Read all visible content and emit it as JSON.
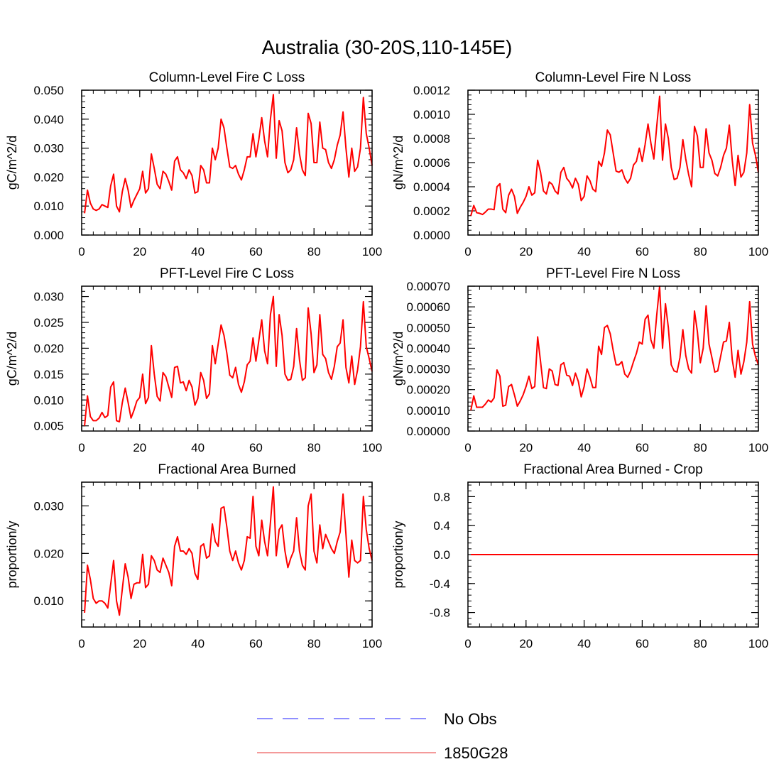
{
  "title": "Australia (30-20S,110-145E)",
  "colors": {
    "obs": "#6a6aff",
    "model": "#ff0000",
    "legend_model": "#f07878"
  },
  "legend": [
    {
      "label": "No Obs",
      "style": "dashed",
      "color": "#6a6aff"
    },
    {
      "label": "1850G28",
      "style": "solid",
      "color": "#f07878"
    }
  ],
  "chart_data": [
    {
      "type": "line",
      "title": "Column-Level Fire C Loss",
      "xlabel": "",
      "ylabel": "gC/m^2/d",
      "xlim": [
        0,
        100
      ],
      "ylim": [
        0,
        0.05
      ],
      "xticks": [
        0,
        20,
        40,
        60,
        80,
        100
      ],
      "xtick_labels": [
        "0",
        "20",
        "40",
        "60",
        "80",
        "100"
      ],
      "yticks": [
        0,
        0.01,
        0.02,
        0.03,
        0.04,
        0.05
      ],
      "ytick_labels": [
        "0.000",
        "0.010",
        "0.020",
        "0.030",
        "0.040",
        "0.050"
      ],
      "series": [
        {
          "name": "1850G28",
          "values": [
            0.0075,
            0.0155,
            0.011,
            0.009,
            0.0085,
            0.009,
            0.0105,
            0.01,
            0.0095,
            0.017,
            0.021,
            0.01,
            0.008,
            0.015,
            0.0195,
            0.0155,
            0.0095,
            0.012,
            0.014,
            0.016,
            0.022,
            0.0145,
            0.016,
            0.028,
            0.023,
            0.0175,
            0.016,
            0.022,
            0.021,
            0.0185,
            0.0155,
            0.0255,
            0.027,
            0.0225,
            0.0215,
            0.0195,
            0.0225,
            0.0205,
            0.0145,
            0.015,
            0.024,
            0.0225,
            0.018,
            0.018,
            0.03,
            0.026,
            0.03,
            0.04,
            0.037,
            0.03,
            0.0235,
            0.023,
            0.024,
            0.021,
            0.019,
            0.0225,
            0.027,
            0.027,
            0.035,
            0.027,
            0.033,
            0.0405,
            0.0325,
            0.027,
            0.04,
            0.0485,
            0.0265,
            0.0395,
            0.036,
            0.025,
            0.0215,
            0.0225,
            0.026,
            0.037,
            0.028,
            0.0225,
            0.0205,
            0.042,
            0.0385,
            0.025,
            0.025,
            0.039,
            0.03,
            0.0295,
            0.025,
            0.023,
            0.026,
            0.031,
            0.0345,
            0.0425,
            0.03,
            0.02,
            0.03,
            0.022,
            0.0235,
            0.03,
            0.0475,
            0.035,
            0.03,
            0.024
          ]
        }
      ]
    },
    {
      "type": "line",
      "title": "Column-Level Fire N Loss",
      "xlabel": "",
      "ylabel": "gN/m^2/d",
      "xlim": [
        0,
        100
      ],
      "ylim": [
        0,
        0.0012
      ],
      "xticks": [
        0,
        20,
        40,
        60,
        80,
        100
      ],
      "xtick_labels": [
        "0",
        "20",
        "40",
        "60",
        "80",
        "100"
      ],
      "yticks": [
        0,
        0.0002,
        0.0004,
        0.0006,
        0.0008,
        0.001,
        0.0012
      ],
      "ytick_labels": [
        "0.0000",
        "0.0002",
        "0.0004",
        "0.0006",
        "0.0008",
        "0.0010",
        "0.0012"
      ],
      "series": [
        {
          "name": "1850G28",
          "values": [
            0.00016,
            0.000245,
            0.000185,
            0.00018,
            0.00017,
            0.00019,
            0.000215,
            0.000215,
            0.00021,
            0.0004,
            0.000425,
            0.000215,
            0.000185,
            0.00033,
            0.00038,
            0.00032,
            0.00018,
            0.00023,
            0.00027,
            0.00032,
            0.0004,
            0.00033,
            0.00035,
            0.00062,
            0.00052,
            0.000365,
            0.00034,
            0.00044,
            0.00042,
            0.000365,
            0.00034,
            0.00052,
            0.00056,
            0.00047,
            0.00044,
            0.00039,
            0.00047,
            0.00042,
            0.000285,
            0.00032,
            0.00049,
            0.00045,
            0.00038,
            0.00036,
            0.00061,
            0.00057,
            0.00068,
            0.00087,
            0.00083,
            0.00068,
            0.00053,
            0.00052,
            0.00054,
            0.00047,
            0.00043,
            0.00047,
            0.00058,
            0.00061,
            0.00072,
            0.00061,
            0.00075,
            0.00092,
            0.00076,
            0.00063,
            0.0009,
            0.00115,
            0.00062,
            0.00092,
            0.0008,
            0.00056,
            0.00046,
            0.00047,
            0.00056,
            0.00079,
            0.00063,
            0.0005,
            0.0004,
            0.0009,
            0.00082,
            0.00056,
            0.00056,
            0.00088,
            0.00068,
            0.00062,
            0.00051,
            0.00049,
            0.00056,
            0.00066,
            0.00072,
            0.00091,
            0.00062,
            0.00041,
            0.00066,
            0.00048,
            0.00052,
            0.00068,
            0.00108,
            0.00076,
            0.00066,
            0.00052
          ]
        }
      ]
    },
    {
      "type": "line",
      "title": "PFT-Level Fire C Loss",
      "xlabel": "",
      "ylabel": "gC/m^2/d",
      "xlim": [
        0,
        100
      ],
      "ylim": [
        0.004,
        0.032
      ],
      "xticks": [
        0,
        20,
        40,
        60,
        80,
        100
      ],
      "xtick_labels": [
        "0",
        "20",
        "40",
        "60",
        "80",
        "100"
      ],
      "yticks": [
        0.005,
        0.01,
        0.015,
        0.02,
        0.025,
        0.03
      ],
      "ytick_labels": [
        "0.005",
        "0.010",
        "0.015",
        "0.020",
        "0.025",
        "0.030"
      ],
      "series": [
        {
          "name": "1850G28",
          "values": [
            0.005,
            0.0108,
            0.0068,
            0.006,
            0.006,
            0.0065,
            0.0076,
            0.0066,
            0.007,
            0.0125,
            0.0135,
            0.006,
            0.0058,
            0.0095,
            0.0123,
            0.0095,
            0.0065,
            0.008,
            0.0098,
            0.0105,
            0.015,
            0.0093,
            0.0105,
            0.0205,
            0.015,
            0.0107,
            0.0098,
            0.0153,
            0.0145,
            0.0125,
            0.0105,
            0.0163,
            0.0165,
            0.0133,
            0.0135,
            0.0118,
            0.0138,
            0.0125,
            0.009,
            0.0103,
            0.0153,
            0.0138,
            0.0103,
            0.0112,
            0.0205,
            0.017,
            0.0208,
            0.0245,
            0.0225,
            0.019,
            0.0148,
            0.0143,
            0.0163,
            0.013,
            0.0115,
            0.0135,
            0.0168,
            0.0175,
            0.022,
            0.0175,
            0.0215,
            0.0255,
            0.0195,
            0.017,
            0.0265,
            0.03,
            0.0165,
            0.0265,
            0.0225,
            0.015,
            0.0138,
            0.014,
            0.0165,
            0.0238,
            0.0178,
            0.0138,
            0.0143,
            0.0278,
            0.0228,
            0.0153,
            0.0168,
            0.0265,
            0.0188,
            0.018,
            0.0153,
            0.014,
            0.0165,
            0.0203,
            0.021,
            0.0255,
            0.0163,
            0.0133,
            0.0185,
            0.013,
            0.0158,
            0.0203,
            0.029,
            0.0203,
            0.018,
            0.0155
          ]
        }
      ]
    },
    {
      "type": "line",
      "title": "PFT-Level Fire N Loss",
      "xlabel": "",
      "ylabel": "gN/m^2/d",
      "xlim": [
        0,
        100
      ],
      "ylim": [
        0,
        0.0007
      ],
      "xticks": [
        0,
        20,
        40,
        60,
        80,
        100
      ],
      "xtick_labels": [
        "0",
        "20",
        "40",
        "60",
        "80",
        "100"
      ],
      "yticks": [
        0,
        0.0001,
        0.0002,
        0.0003,
        0.0004,
        0.0005,
        0.0006,
        0.0007
      ],
      "ytick_labels": [
        "0.00000",
        "0.00010",
        "0.00020",
        "0.00030",
        "0.00040",
        "0.00050",
        "0.00060",
        "0.00070"
      ],
      "series": [
        {
          "name": "1850G28",
          "values": [
            0.0001,
            0.00017,
            0.000115,
            0.000115,
            0.000115,
            0.00013,
            0.00015,
            0.00014,
            0.00016,
            0.000295,
            0.000265,
            0.00012,
            0.000125,
            0.000215,
            0.000225,
            0.000175,
            0.00012,
            0.000145,
            0.000175,
            0.000215,
            0.000265,
            0.000205,
            0.000215,
            0.000455,
            0.000335,
            0.00021,
            0.000205,
            0.0003,
            0.00029,
            0.000225,
            0.00022,
            0.00032,
            0.00033,
            0.00027,
            0.000265,
            0.00022,
            0.00028,
            0.00024,
            0.000165,
            0.000215,
            0.0003,
            0.00026,
            0.00021,
            0.00021,
            0.00041,
            0.00037,
            0.0005,
            0.00051,
            0.00047,
            0.00039,
            0.00032,
            0.00032,
            0.000335,
            0.000275,
            0.00026,
            0.00029,
            0.000335,
            0.000375,
            0.00043,
            0.00042,
            0.00054,
            0.00056,
            0.00044,
            0.0004,
            0.00056,
            0.0007,
            0.0004,
            0.000615,
            0.0005,
            0.00032,
            0.00029,
            0.000285,
            0.000355,
            0.00049,
            0.000365,
            0.0003,
            0.00028,
            0.00058,
            0.00048,
            0.00033,
            0.0004,
            0.000605,
            0.00042,
            0.000355,
            0.000285,
            0.00029,
            0.00036,
            0.00043,
            0.000435,
            0.000525,
            0.000345,
            0.00026,
            0.00039,
            0.000275,
            0.000335,
            0.00043,
            0.000625,
            0.00042,
            0.00036,
            0.00032
          ]
        }
      ]
    },
    {
      "type": "line",
      "title": "Fractional Area Burned",
      "xlabel": "",
      "ylabel": "proportion/y",
      "xlim": [
        0,
        100
      ],
      "ylim": [
        0.0045,
        0.035
      ],
      "xticks": [
        0,
        20,
        40,
        60,
        80,
        100
      ],
      "xtick_labels": [
        "0",
        "20",
        "40",
        "60",
        "80",
        "100"
      ],
      "yticks": [
        0.01,
        0.02,
        0.03
      ],
      "ytick_labels": [
        "0.010",
        "0.020",
        "0.030"
      ],
      "series": [
        {
          "name": "1850G28",
          "values": [
            0.0075,
            0.0175,
            0.0145,
            0.0105,
            0.0095,
            0.01,
            0.01,
            0.0095,
            0.0085,
            0.0135,
            0.0185,
            0.01,
            0.007,
            0.0125,
            0.0178,
            0.015,
            0.0105,
            0.0135,
            0.0138,
            0.0138,
            0.0198,
            0.0128,
            0.0135,
            0.0195,
            0.0185,
            0.0165,
            0.016,
            0.019,
            0.0175,
            0.016,
            0.0132,
            0.0215,
            0.0235,
            0.0205,
            0.0205,
            0.0198,
            0.021,
            0.02,
            0.0158,
            0.0145,
            0.0215,
            0.022,
            0.019,
            0.0195,
            0.0262,
            0.0225,
            0.0215,
            0.0295,
            0.0298,
            0.0255,
            0.0205,
            0.0185,
            0.0205,
            0.018,
            0.0165,
            0.0185,
            0.0235,
            0.0232,
            0.032,
            0.0215,
            0.0195,
            0.027,
            0.0225,
            0.0195,
            0.0265,
            0.034,
            0.0195,
            0.025,
            0.026,
            0.0205,
            0.017,
            0.019,
            0.0205,
            0.0275,
            0.0205,
            0.0175,
            0.0165,
            0.03,
            0.0325,
            0.0205,
            0.018,
            0.026,
            0.021,
            0.024,
            0.0225,
            0.021,
            0.02,
            0.0225,
            0.0245,
            0.0325,
            0.024,
            0.015,
            0.0228,
            0.0185,
            0.018,
            0.0185,
            0.032,
            0.025,
            0.021,
            0.0185
          ]
        }
      ]
    },
    {
      "type": "line",
      "title": "Fractional Area Burned - Crop",
      "xlabel": "",
      "ylabel": "proportion/y",
      "xlim": [
        0,
        100
      ],
      "ylim": [
        -1.0,
        1.0
      ],
      "xticks": [
        0,
        20,
        40,
        60,
        80,
        100
      ],
      "xtick_labels": [
        "0",
        "20",
        "40",
        "60",
        "80",
        "100"
      ],
      "yticks": [
        -0.8,
        -0.4,
        0.0,
        0.4,
        0.8
      ],
      "ytick_labels": [
        "-0.8",
        "-0.4",
        "0.0",
        "0.4",
        "0.8"
      ],
      "series": [
        {
          "name": "1850G28",
          "values": [
            0,
            0,
            0,
            0,
            0,
            0,
            0,
            0,
            0,
            0,
            0,
            0,
            0,
            0,
            0,
            0,
            0,
            0,
            0,
            0,
            0,
            0,
            0,
            0,
            0,
            0,
            0,
            0,
            0,
            0,
            0,
            0,
            0,
            0,
            0,
            0,
            0,
            0,
            0,
            0,
            0,
            0,
            0,
            0,
            0,
            0,
            0,
            0,
            0,
            0,
            0,
            0,
            0,
            0,
            0,
            0,
            0,
            0,
            0,
            0,
            0,
            0,
            0,
            0,
            0,
            0,
            0,
            0,
            0,
            0,
            0,
            0,
            0,
            0,
            0,
            0,
            0,
            0,
            0,
            0,
            0,
            0,
            0,
            0,
            0,
            0,
            0,
            0,
            0,
            0,
            0,
            0,
            0,
            0,
            0,
            0,
            0,
            0,
            0,
            0
          ]
        }
      ]
    }
  ]
}
